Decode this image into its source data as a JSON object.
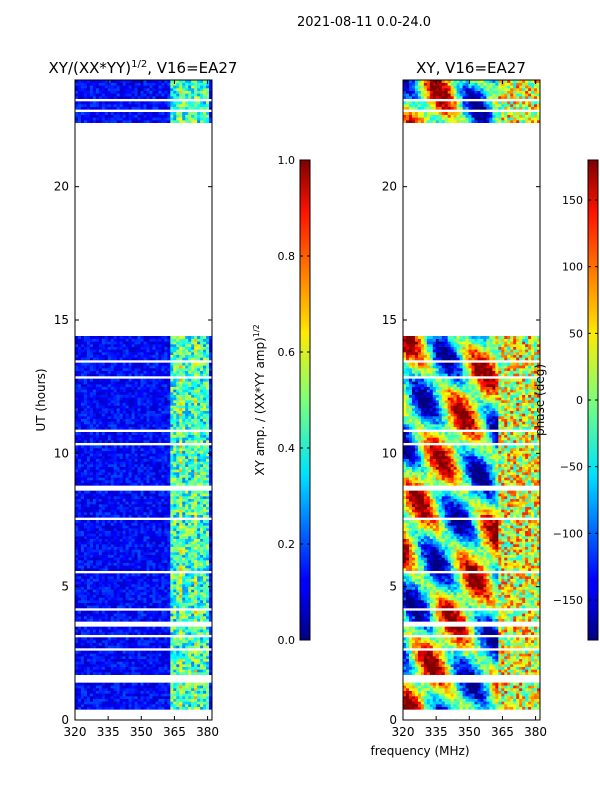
{
  "figure_title": "2021-08-11 0.0-24.0",
  "chart_data": [
    {
      "type": "heatmap",
      "panel": "left",
      "title_main": "XY/(XX*YY)",
      "title_sup": "1/2",
      "title_rest": ", V16=EA27",
      "xlabel": "",
      "ylabel": "UT (hours)",
      "xlim": [
        320,
        382
      ],
      "ylim": [
        0,
        24
      ],
      "x_ticks": [
        320,
        335,
        350,
        365,
        380
      ],
      "y_ticks": [
        0,
        5,
        10,
        15,
        20
      ],
      "data_blocks": [
        [
          0.4,
          14.4
        ],
        [
          22.4,
          24.0
        ]
      ],
      "colorbar": {
        "label": "XY amp. / (XX*YY amp)",
        "label_sup": "1/2",
        "range": [
          0.0,
          1.0
        ],
        "ticks": [
          "0.0",
          "0.2",
          "0.4",
          "0.6",
          "0.8",
          "1.0"
        ],
        "tick_values": [
          0.0,
          0.2,
          0.4,
          0.6,
          0.8,
          1.0
        ],
        "colormap": "jet"
      }
    },
    {
      "type": "heatmap",
      "panel": "right",
      "title_main": "XY, V16=EA27",
      "xlabel": "frequency (MHz)",
      "ylabel": "",
      "xlim": [
        320,
        382
      ],
      "ylim": [
        0,
        24
      ],
      "x_ticks": [
        320,
        335,
        350,
        365,
        380
      ],
      "y_ticks": [
        0,
        5,
        10,
        15,
        20
      ],
      "data_blocks": [
        [
          0.4,
          14.4
        ],
        [
          22.4,
          24.0
        ]
      ],
      "colorbar": {
        "label": "phase (deg)",
        "range": [
          -180,
          180
        ],
        "ticks": [
          "150",
          "100",
          "50",
          "0",
          "−50",
          "−100",
          "−150"
        ],
        "tick_values": [
          150,
          100,
          50,
          0,
          -50,
          -100,
          -150
        ],
        "colormap": "jet"
      }
    }
  ]
}
